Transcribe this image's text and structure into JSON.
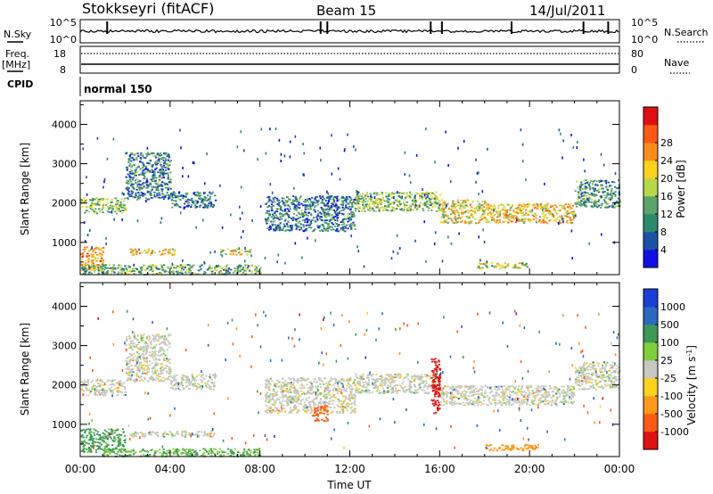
{
  "header": {
    "station": "Stokkseyri (fitACF)",
    "beam": "Beam 15",
    "date": "14/Jul/2011"
  },
  "top_panels": {
    "nsky_label": "N.Sky",
    "nsky_ticks": [
      "10^5",
      "10^0"
    ],
    "nsearch_label": "N.Search",
    "nsearch_ticks": [
      "10^5",
      "10^0"
    ],
    "freq_label": "Freq.",
    "freq_unit": "[MHz]",
    "freq_ticks": [
      "18",
      "8"
    ],
    "nave_label": "Nave",
    "nave_ticks": [
      "80",
      "0"
    ],
    "cpid_label": "CPID",
    "cpid_value": "normal 150"
  },
  "chart_data": [
    {
      "type": "heatmap",
      "panel": "power",
      "ylabel": "Slant Range [km]",
      "yticks": [
        1000,
        2000,
        3000,
        4000
      ],
      "ylim": [
        180,
        4600
      ],
      "xlim": [
        0,
        24
      ],
      "colorbar": {
        "label": "Power [dB]",
        "ticks": [
          4,
          8,
          12,
          16,
          20,
          24,
          28
        ],
        "range": [
          0,
          32
        ],
        "colors": [
          "#1010e6",
          "#1a52a8",
          "#2a8a6e",
          "#5aa56a",
          "#b8d84a",
          "#ffd21c",
          "#ff8c1a",
          "#ff5a14",
          "#e01010"
        ]
      },
      "echo_bands": [
        {
          "t": [
            0.0,
            2.0
          ],
          "range": [
            1750,
            2150
          ],
          "power_db": 14
        },
        {
          "t": [
            2.0,
            4.0
          ],
          "range": [
            2100,
            3300
          ],
          "power_db": 9
        },
        {
          "t": [
            4.0,
            6.0
          ],
          "range": [
            1900,
            2300
          ],
          "power_db": 8
        },
        {
          "t": [
            8.2,
            12.2
          ],
          "range": [
            1300,
            2200
          ],
          "power_db": 8
        },
        {
          "t": [
            12.2,
            16.0
          ],
          "range": [
            1800,
            2300
          ],
          "power_db": 14
        },
        {
          "t": [
            16.0,
            18.0
          ],
          "range": [
            1500,
            2100
          ],
          "power_db": 18
        },
        {
          "t": [
            18.0,
            22.0
          ],
          "range": [
            1500,
            2000
          ],
          "power_db": 20
        },
        {
          "t": [
            22.0,
            24.0
          ],
          "range": [
            1900,
            2600
          ],
          "power_db": 10
        },
        {
          "t": [
            0.0,
            1.0
          ],
          "range": [
            300,
            900
          ],
          "power_db": 22
        },
        {
          "t": [
            2.2,
            4.2
          ],
          "range": [
            700,
            850
          ],
          "power_db": 20
        },
        {
          "t": [
            6.2,
            7.6
          ],
          "range": [
            700,
            850
          ],
          "power_db": 18
        },
        {
          "t": [
            0.0,
            8.0
          ],
          "range": [
            200,
            450
          ],
          "power_db": 12
        },
        {
          "t": [
            17.5,
            20.0
          ],
          "range": [
            350,
            500
          ],
          "power_db": 16
        }
      ]
    },
    {
      "type": "heatmap",
      "panel": "velocity",
      "ylabel": "Slant Range [km]",
      "xlabel": "Time UT",
      "xticks": [
        "00:00",
        "04:00",
        "08:00",
        "12:00",
        "16:00",
        "20:00",
        "00:00"
      ],
      "yticks": [
        1000,
        2000,
        3000,
        4000
      ],
      "ylim": [
        180,
        4600
      ],
      "xlim": [
        0,
        24
      ],
      "colorbar": {
        "label": "Velocity [m s-1]",
        "tick_labels": [
          "1000",
          "500",
          "100",
          "25",
          "-25",
          "-100",
          "-500",
          "-1000"
        ],
        "colors": [
          "#1a3fd6",
          "#2a6abf",
          "#3a9a58",
          "#7fcf3a",
          "#c8c8c0",
          "#ffd21c",
          "#ff9a1a",
          "#ff5a14",
          "#e01010"
        ]
      },
      "echo_bands": [
        {
          "t": [
            0.0,
            2.0
          ],
          "range": [
            1750,
            2150
          ],
          "velocity": 0
        },
        {
          "t": [
            2.0,
            4.0
          ],
          "range": [
            2100,
            3300
          ],
          "velocity": 0
        },
        {
          "t": [
            4.0,
            6.0
          ],
          "range": [
            1900,
            2300
          ],
          "velocity": 0
        },
        {
          "t": [
            8.2,
            12.2
          ],
          "range": [
            1300,
            2200
          ],
          "velocity": 0
        },
        {
          "t": [
            12.2,
            16.0
          ],
          "range": [
            1800,
            2300
          ],
          "velocity": 0
        },
        {
          "t": [
            15.6,
            16.0
          ],
          "range": [
            1300,
            2700
          ],
          "velocity": -900
        },
        {
          "t": [
            16.0,
            22.0
          ],
          "range": [
            1500,
            2000
          ],
          "velocity": 0
        },
        {
          "t": [
            22.0,
            24.0
          ],
          "range": [
            1900,
            2600
          ],
          "velocity": 0
        },
        {
          "t": [
            10.3,
            11.0
          ],
          "range": [
            1100,
            1500
          ],
          "velocity": -400
        },
        {
          "t": [
            0.0,
            2.0
          ],
          "range": [
            300,
            900
          ],
          "velocity": 80
        },
        {
          "t": [
            2.2,
            6.0
          ],
          "range": [
            700,
            850
          ],
          "velocity": 0
        },
        {
          "t": [
            1.0,
            8.0
          ],
          "range": [
            200,
            400
          ],
          "velocity": 60
        },
        {
          "t": [
            18.0,
            20.5
          ],
          "range": [
            350,
            500
          ],
          "velocity": -150
        }
      ]
    }
  ]
}
